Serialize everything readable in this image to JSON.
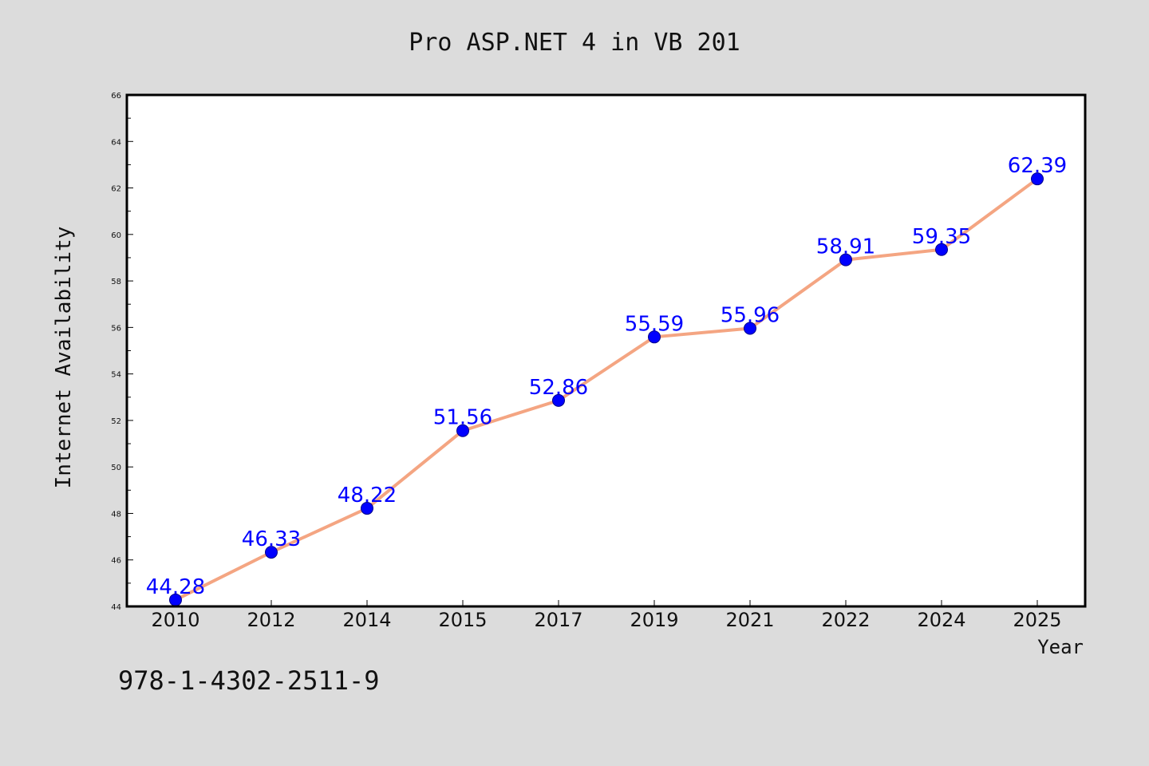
{
  "chart_data": {
    "type": "line",
    "title": "Pro ASP.NET 4 in VB 201",
    "xlabel": "Year",
    "ylabel": "Internet Availability",
    "ylim": [
      44,
      66
    ],
    "yticks": [
      44,
      46,
      48,
      50,
      52,
      54,
      56,
      58,
      60,
      62,
      64,
      66
    ],
    "categories": [
      "2010",
      "2012",
      "2014",
      "2015",
      "2017",
      "2019",
      "2021",
      "2022",
      "2024",
      "2025"
    ],
    "series": [
      {
        "values": [
          44.28,
          46.33,
          48.22,
          51.56,
          52.86,
          55.59,
          55.96,
          58.91,
          59.35,
          62.39
        ],
        "labels": [
          "44.28",
          "46.33",
          "48.22",
          "51.56",
          "52.86",
          "55.59",
          "55.96",
          "58.91",
          "59.35",
          "62.39"
        ]
      }
    ],
    "grid": false,
    "colors": {
      "line": "#f4a582",
      "marker": "#0000ff",
      "label": "#0000ff",
      "background": "#dcdcdc",
      "plot_background": "#ffffff"
    }
  },
  "footnote": "978-1-4302-2511-9"
}
